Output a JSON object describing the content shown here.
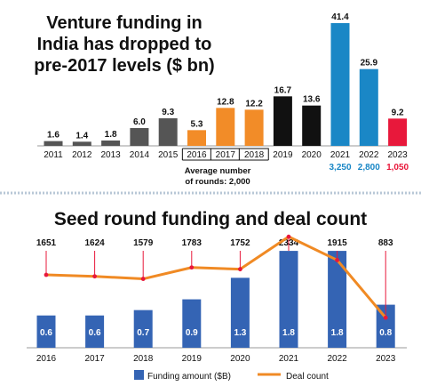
{
  "chart_data": [
    {
      "type": "bar",
      "title_lines": [
        "Venture funding in",
        "India has dropped to",
        "pre-2017 levels ($ bn)"
      ],
      "categories": [
        "2011",
        "2012",
        "2013",
        "2014",
        "2015",
        "2016",
        "2017",
        "2018",
        "2019",
        "2020",
        "2021",
        "2022",
        "2023"
      ],
      "values": [
        1.6,
        1.4,
        1.8,
        6.0,
        9.3,
        5.3,
        12.8,
        12.2,
        16.7,
        13.6,
        41.4,
        25.9,
        9.2
      ],
      "value_labels": [
        "1.6",
        "1.4",
        "1.8",
        "6.0",
        "9.3",
        "5.3",
        "12.8",
        "12.2",
        "16.7",
        "13.6",
        "41.4",
        "25.9",
        "9.2"
      ],
      "bar_colors": [
        "#555555",
        "#555555",
        "#555555",
        "#555555",
        "#555555",
        "#f28c28",
        "#f28c28",
        "#f28c28",
        "#111111",
        "#111111",
        "#1a87c6",
        "#1a87c6",
        "#e8183b"
      ],
      "highlight_years": [
        "2016",
        "2017",
        "2018"
      ],
      "annotation_lines": [
        "Average number",
        "of rounds: 2,000"
      ],
      "round_counts": [
        {
          "year": "2021",
          "text": "3,250",
          "color": "#1a87c6"
        },
        {
          "year": "2022",
          "text": "2,800",
          "color": "#1a87c6"
        },
        {
          "year": "2023",
          "text": "1,050",
          "color": "#e8183b"
        }
      ],
      "ylim": [
        0,
        45
      ]
    },
    {
      "type": "bar+line",
      "title": "Seed round funding and deal count",
      "categories": [
        "2016",
        "2017",
        "2018",
        "2019",
        "2020",
        "2021",
        "2022",
        "2023"
      ],
      "series": [
        {
          "name": "Funding amount ($B)",
          "kind": "bar",
          "color": "#3464b4",
          "values": [
            0.6,
            0.6,
            0.7,
            0.9,
            1.3,
            1.8,
            1.8,
            0.8
          ],
          "labels": [
            "0.6",
            "0.6",
            "0.7",
            "0.9",
            "1.3",
            "1.8",
            "1.8",
            "0.8"
          ]
        },
        {
          "name": "Deal count",
          "kind": "line",
          "color": "#f08a24",
          "values": [
            1651,
            1624,
            1579,
            1783,
            1752,
            2334,
            1915,
            883
          ],
          "labels": [
            "1651",
            "1624",
            "1579",
            "1783",
            "1752",
            "2334",
            "1915",
            "883"
          ]
        }
      ],
      "annotation_color": "#e8183b",
      "bar_ylim": [
        0,
        2.0
      ],
      "line_ylim": [
        600,
        2400
      ]
    }
  ]
}
